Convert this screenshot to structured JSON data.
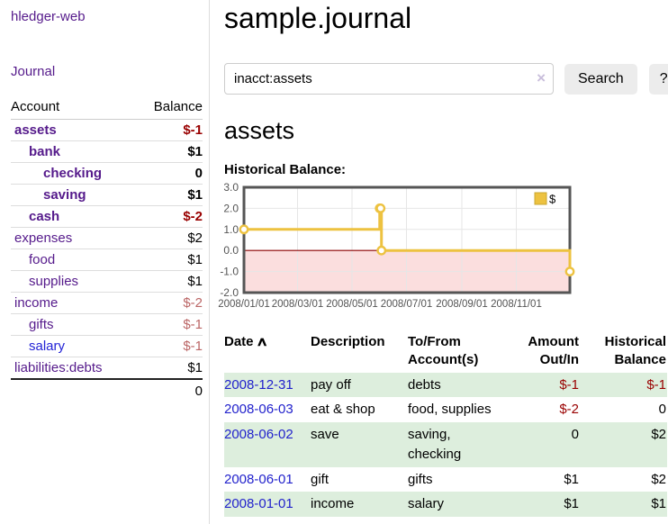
{
  "sidebar": {
    "app_title": "hledger-web",
    "journal_link": "Journal",
    "accounts_table": {
      "headers": [
        "Account",
        "Balance"
      ],
      "rows": [
        {
          "name": "assets",
          "indent": 0,
          "bold": true,
          "balance": "$-1",
          "neg": "strong",
          "link": "purple"
        },
        {
          "name": "bank",
          "indent": 1,
          "bold": true,
          "balance": "$1",
          "neg": "none",
          "link": "purple"
        },
        {
          "name": "checking",
          "indent": 2,
          "bold": true,
          "balance": "0",
          "neg": "none",
          "link": "purple"
        },
        {
          "name": "saving",
          "indent": 2,
          "bold": true,
          "balance": "$1",
          "neg": "none",
          "link": "purple"
        },
        {
          "name": "cash",
          "indent": 1,
          "bold": true,
          "balance": "$-2",
          "neg": "strong",
          "link": "purple"
        },
        {
          "name": "expenses",
          "indent": 0,
          "bold": false,
          "balance": "$2",
          "neg": "none",
          "link": "purple"
        },
        {
          "name": "food",
          "indent": 1,
          "bold": false,
          "balance": "$1",
          "neg": "none",
          "link": "purple"
        },
        {
          "name": "supplies",
          "indent": 1,
          "bold": false,
          "balance": "$1",
          "neg": "none",
          "link": "purple"
        },
        {
          "name": "income",
          "indent": 0,
          "bold": false,
          "balance": "$-2",
          "neg": "soft",
          "link": "purple"
        },
        {
          "name": "gifts",
          "indent": 1,
          "bold": false,
          "balance": "$-1",
          "neg": "soft",
          "link": "purple"
        },
        {
          "name": "salary",
          "indent": 1,
          "bold": false,
          "balance": "$-1",
          "neg": "soft",
          "link": "blue"
        },
        {
          "name": "liabilities:debts",
          "indent": 0,
          "bold": false,
          "balance": "$1",
          "neg": "none",
          "link": "purple"
        }
      ],
      "total": "0"
    }
  },
  "main": {
    "title": "sample.journal",
    "search": {
      "value": "inacct:assets",
      "clear_icon": "×",
      "button_label": "Search",
      "help_label": "?"
    },
    "account_heading": "assets",
    "chart_label": "Historical Balance:",
    "register": {
      "headers": {
        "date": "Date",
        "sort_icon": "∧",
        "description": "Description",
        "accounts": "To/From Account(s)",
        "amount": "Amount Out/In",
        "balance": "Historical Balance"
      },
      "rows": [
        {
          "date": "2008-12-31",
          "description": "pay off",
          "accounts": "debts",
          "amount": "$-1",
          "amount_neg": true,
          "balance": "$-1",
          "balance_neg": true
        },
        {
          "date": "2008-06-03",
          "description": "eat & shop",
          "accounts": "food, supplies",
          "amount": "$-2",
          "amount_neg": true,
          "balance": "0",
          "balance_neg": false
        },
        {
          "date": "2008-06-02",
          "description": "save",
          "accounts": "saving, checking",
          "amount": "0",
          "amount_neg": false,
          "balance": "$2",
          "balance_neg": false
        },
        {
          "date": "2008-06-01",
          "description": "gift",
          "accounts": "gifts",
          "amount": "$1",
          "amount_neg": false,
          "balance": "$2",
          "balance_neg": false
        },
        {
          "date": "2008-01-01",
          "description": "income",
          "accounts": "salary",
          "amount": "$1",
          "amount_neg": false,
          "balance": "$1",
          "balance_neg": false
        }
      ]
    }
  },
  "chart_data": {
    "type": "line",
    "style": "step-after",
    "title": "Historical Balance",
    "series": [
      {
        "name": "$",
        "color": "#edc240",
        "points": [
          [
            "2008-01-01",
            1
          ],
          [
            "2008-06-01",
            2
          ],
          [
            "2008-06-02",
            2
          ],
          [
            "2008-06-03",
            0
          ],
          [
            "2008-12-31",
            -1
          ]
        ]
      }
    ],
    "x_range": [
      "2008-01-01",
      "2008-12-31"
    ],
    "x_ticks": [
      "2008/01/01",
      "2008/03/01",
      "2008/05/01",
      "2008/07/01",
      "2008/09/01",
      "2008/11/01"
    ],
    "y_ticks": [
      "3.0",
      "2.0",
      "1.0",
      "0.0",
      "-1.0",
      "-2.0"
    ],
    "ylim": [
      -2,
      3
    ],
    "grid": true,
    "legend": {
      "position": "top-right",
      "label": "$"
    },
    "zero_line_color": "#8b0000",
    "negative_region_color": "#fbdede",
    "grid_color": "#e6e6e6",
    "border_color": "#555555",
    "tick_label_color": "#545454",
    "marker_fill": "#ffffff"
  },
  "colors": {
    "link_purple": "#551a8b",
    "link_blue": "#2323d6",
    "date_link_blue": "#2222cc",
    "negative_strong": "#990000",
    "negative_soft": "#bb6666",
    "row_stripe_green": "#ddeedd",
    "button_bg": "#ececec",
    "clear_icon": "#c9bedb"
  }
}
